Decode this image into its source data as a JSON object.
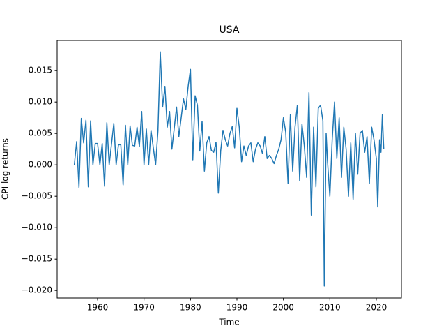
{
  "chart_data": {
    "type": "line",
    "title": "USA",
    "x_label": "Time",
    "y_label": "CPI log returns",
    "xlim": [
      1951.3,
      2025.4
    ],
    "ylim": [
      -0.0212,
      0.0198
    ],
    "xticks": [
      1960,
      1970,
      1980,
      1990,
      2000,
      2010,
      2020
    ],
    "yticks": [
      {
        "value": -0.02,
        "label": "−0.020"
      },
      {
        "value": -0.015,
        "label": "−0.015"
      },
      {
        "value": -0.01,
        "label": "−0.010"
      },
      {
        "value": -0.005,
        "label": "−0.005"
      },
      {
        "value": 0,
        "label": "0.000"
      },
      {
        "value": 0.005,
        "label": "0.005"
      },
      {
        "value": 0.01,
        "label": "0.010"
      },
      {
        "value": 0.015,
        "label": "0.015"
      }
    ],
    "series": [
      {
        "color": "#1f77b4",
        "x": [
          1955.0,
          1955.5,
          1956.0,
          1956.5,
          1957.0,
          1957.5,
          1958.0,
          1958.5,
          1959.0,
          1959.5,
          1960.0,
          1960.5,
          1961.0,
          1961.5,
          1962.0,
          1962.5,
          1963.0,
          1963.5,
          1964.0,
          1964.5,
          1965.0,
          1965.5,
          1966.0,
          1966.5,
          1967.0,
          1967.5,
          1968.0,
          1968.5,
          1969.0,
          1969.5,
          1970.0,
          1970.5,
          1971.0,
          1971.5,
          1972.0,
          1972.5,
          1973.0,
          1973.5,
          1974.0,
          1974.5,
          1975.0,
          1975.5,
          1976.0,
          1976.5,
          1977.0,
          1977.5,
          1978.0,
          1978.5,
          1979.0,
          1979.5,
          1980.0,
          1980.5,
          1981.0,
          1981.5,
          1982.0,
          1982.5,
          1983.0,
          1983.5,
          1984.0,
          1984.5,
          1985.0,
          1985.5,
          1986.0,
          1986.5,
          1987.0,
          1987.5,
          1988.0,
          1988.5,
          1989.0,
          1989.5,
          1990.0,
          1990.5,
          1991.0,
          1991.5,
          1992.0,
          1992.5,
          1993.0,
          1993.5,
          1994.0,
          1994.5,
          1995.0,
          1995.5,
          1996.0,
          1996.5,
          1997.0,
          1997.5,
          1998.0,
          1998.5,
          1999.0,
          1999.5,
          2000.0,
          2000.5,
          2001.0,
          2001.5,
          2002.0,
          2002.5,
          2003.0,
          2003.5,
          2004.0,
          2004.5,
          2005.0,
          2005.5,
          2006.0,
          2006.5,
          2007.0,
          2007.5,
          2008.0,
          2008.5,
          2008.8,
          2009.2,
          2009.5,
          2010.0,
          2010.5,
          2011.0,
          2011.5,
          2012.0,
          2012.5,
          2013.0,
          2013.5,
          2014.0,
          2014.5,
          2015.0,
          2015.5,
          2016.0,
          2016.5,
          2017.0,
          2017.5,
          2018.0,
          2018.5,
          2019.0,
          2019.5,
          2020.0,
          2020.3,
          2020.7,
          2021.0,
          2021.3,
          2021.6
        ],
        "values": [
          0,
          0.0037,
          -0.0036,
          0.0074,
          0.0035,
          0.0071,
          -0.0035,
          0.007,
          0,
          0.0034,
          0.0034,
          0,
          0.0034,
          -0.0034,
          0.0067,
          0,
          0.0033,
          0.0066,
          0,
          0.0032,
          0.0032,
          -0.0032,
          0.0063,
          0,
          0.0062,
          0.0031,
          0.003,
          0.006,
          0.0029,
          0.0085,
          0,
          0.0057,
          0,
          0.0055,
          0.0027,
          0,
          0.0054,
          0.018,
          0.0092,
          0.0125,
          0.006,
          0.0085,
          0.0025,
          0.0058,
          0.0092,
          0.0045,
          0.0075,
          0.0105,
          0.0088,
          0.0125,
          0.0152,
          0.0008,
          0.011,
          0.0095,
          0.0022,
          0.0069,
          -0.001,
          0.0035,
          0.0045,
          0.0023,
          0.002,
          0.0036,
          -0.0045,
          0.0022,
          0.0055,
          0.004,
          0.003,
          0.005,
          0.0061,
          0.0027,
          0.009,
          0.006,
          0.0005,
          0.003,
          0.0015,
          0.003,
          0.0035,
          0.0005,
          0.0025,
          0.0035,
          0.003,
          0.0018,
          0.0045,
          0.001,
          0.0015,
          0.001,
          0.0002,
          0.0015,
          0.0025,
          0.004,
          0.0075,
          0.0052,
          -0.003,
          0.008,
          -0.001,
          0.006,
          0.0095,
          -0.0025,
          0.0065,
          0.003,
          -0.002,
          0.0115,
          -0.008,
          0.006,
          -0.0035,
          0.009,
          0.0095,
          0.007,
          -0.0193,
          0.005,
          0.0005,
          -0.005,
          0.004,
          0.01,
          0.001,
          0.0075,
          -0.002,
          0.006,
          0.0025,
          -0.005,
          0.0035,
          -0.0055,
          0.005,
          -0.0015,
          0.005,
          0.0055,
          0.002,
          0.0045,
          -0.003,
          0.006,
          0.004,
          0.001,
          -0.0067,
          0.004,
          0.002,
          0.008,
          0.0025
        ]
      }
    ]
  }
}
